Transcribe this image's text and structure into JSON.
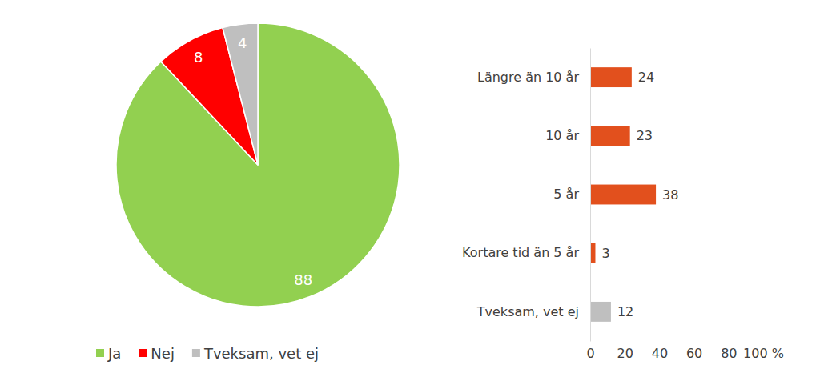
{
  "chart_data": [
    {
      "type": "pie",
      "categories": [
        "Ja",
        "Nej",
        "Tveksam, vet ej"
      ],
      "values": [
        88,
        8,
        4
      ],
      "colors": [
        "#92d050",
        "#ff0000",
        "#bfbfbf"
      ],
      "data_labels": true,
      "legend": "bottom"
    },
    {
      "type": "bar",
      "orientation": "horizontal",
      "categories": [
        "Längre än 10 år",
        "10 år",
        "5 år",
        "Kortare tid än 5 år",
        "Tveksam, vet ej"
      ],
      "values": [
        24,
        23,
        38,
        3,
        12
      ],
      "colors": [
        "#e2501d",
        "#e2501d",
        "#e2501d",
        "#e2501d",
        "#bfbfbf"
      ],
      "xlim": [
        0,
        100
      ],
      "xticks": [
        0,
        20,
        40,
        60,
        80,
        {
          "value": 100,
          "label": "100 %"
        }
      ],
      "data_labels": true,
      "grid": false
    }
  ]
}
